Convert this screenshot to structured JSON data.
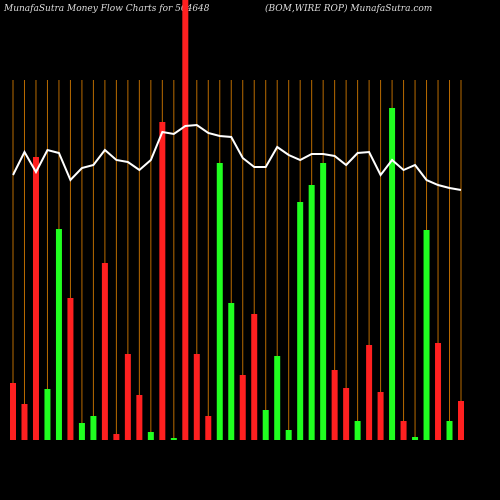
{
  "chart_data": {
    "type": "bar",
    "title": "MunafaSutra  Money Flow  Charts for 504648",
    "subtitle": "(BOM,WIRE ROP) MunafaSutra.com",
    "values": [
      57,
      36,
      283,
      51,
      211,
      142,
      17,
      24,
      177,
      6,
      86,
      45,
      8,
      318,
      2,
      440,
      86,
      24,
      277,
      137,
      65,
      126,
      30,
      84,
      10,
      238,
      255,
      277,
      70,
      52,
      19,
      95,
      48,
      332,
      19,
      3,
      210,
      97,
      19,
      39
    ],
    "colors": [
      "#ff2020",
      "#ff2020",
      "#ff2020",
      "#20ff20",
      "#20ff20",
      "#ff2020",
      "#20ff20",
      "#20ff20",
      "#ff2020",
      "#ff2020",
      "#ff2020",
      "#ff2020",
      "#20ff20",
      "#ff2020",
      "#20ff20",
      "#ff2020",
      "#ff2020",
      "#ff2020",
      "#20ff20",
      "#20ff20",
      "#ff2020",
      "#ff2020",
      "#20ff20",
      "#20ff20",
      "#20ff20",
      "#20ff20",
      "#20ff20",
      "#20ff20",
      "#ff2020",
      "#ff2020",
      "#20ff20",
      "#ff2020",
      "#ff2020",
      "#20ff20",
      "#ff2020",
      "#20ff20",
      "#20ff20",
      "#ff2020",
      "#20ff20",
      "#ff2020"
    ],
    "line": {
      "color": "#ffffff",
      "values": [
        265,
        288,
        268,
        290,
        287,
        260,
        272,
        275,
        290,
        280,
        278,
        270,
        280,
        308,
        306,
        314,
        315,
        307,
        304,
        303,
        282,
        273,
        273,
        293,
        285,
        280,
        286,
        286,
        284,
        275,
        287,
        288,
        265,
        280,
        270,
        275,
        260,
        255,
        252,
        250
      ]
    },
    "ylim": [
      0,
      440
    ],
    "grid": true,
    "grid_color": "#b86a00"
  }
}
